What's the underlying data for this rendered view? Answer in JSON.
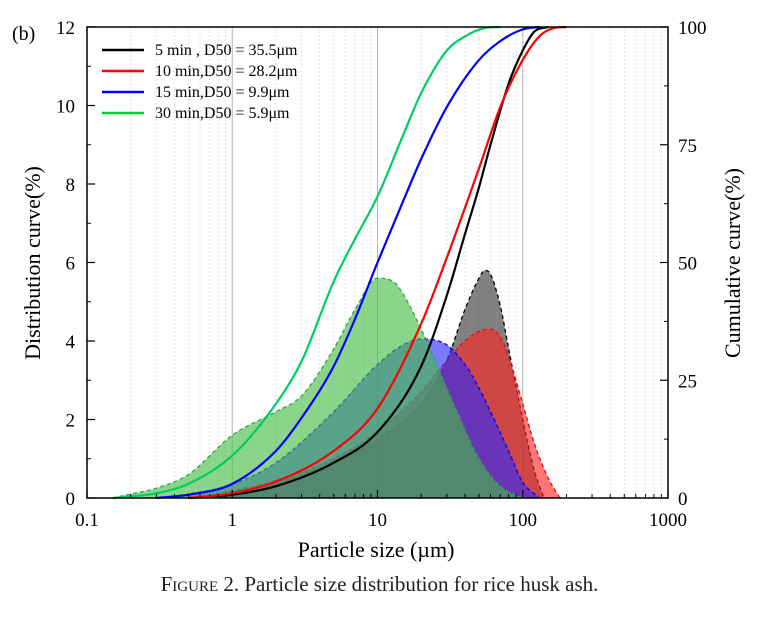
{
  "figure": {
    "panel_label": "(b)",
    "caption_prefix": "Figure",
    "caption_text": " 2. Particle size distribution for rice husk ash."
  },
  "chart_data": {
    "type": "area",
    "xlabel": "Particle size (µm)",
    "ylabel_left": "Distribution curve(%)",
    "ylabel_right": "Cumulative curve(%)",
    "x_scale": "log",
    "xlim": [
      0.1,
      1000
    ],
    "ylim_left": [
      0,
      12
    ],
    "ylim_right": [
      0,
      100
    ],
    "x_ticks": [
      "0.1",
      "1",
      "10",
      "100",
      "1000"
    ],
    "y_left_ticks": [
      "0",
      "2",
      "4",
      "6",
      "8",
      "10",
      "12"
    ],
    "y_right_ticks": [
      "0",
      "25",
      "50",
      "75",
      "100"
    ],
    "grid": "vertical minor gridlines (log)",
    "legend_position": "top-left",
    "series": [
      {
        "name": "5 min , D50 = 35.5μm",
        "color": "#000000",
        "fill_color": "#333333",
        "d50": 35.5,
        "distribution": {
          "x": [
            0.5,
            0.8,
            1,
            2,
            5,
            10,
            20,
            30,
            40,
            50,
            55,
            60,
            70,
            80,
            100,
            120,
            140
          ],
          "y": [
            0,
            0.08,
            0.15,
            0.4,
            0.9,
            1.5,
            2.4,
            3.5,
            4.8,
            5.6,
            5.8,
            5.7,
            4.9,
            3.8,
            2.0,
            0.7,
            0
          ]
        },
        "cumulative": {
          "x": [
            0.5,
            1,
            2,
            5,
            10,
            20,
            30,
            40,
            50,
            60,
            80,
            100,
            120,
            150
          ],
          "y": [
            0,
            0.7,
            2.5,
            7.5,
            14,
            28,
            43,
            56,
            66,
            75,
            88,
            95,
            99,
            100
          ]
        }
      },
      {
        "name": "10 min,D50 = 28.2μm",
        "color": "#ff0000",
        "fill_color": "#ff2222",
        "d50": 28.2,
        "distribution": {
          "x": [
            0.5,
            1,
            2,
            5,
            10,
            20,
            30,
            40,
            50,
            60,
            70,
            80,
            100,
            120,
            150,
            180
          ],
          "y": [
            0,
            0.18,
            0.45,
            1.0,
            1.7,
            2.7,
            3.5,
            4.0,
            4.25,
            4.3,
            4.1,
            3.6,
            2.4,
            1.4,
            0.5,
            0
          ]
        },
        "cumulative": {
          "x": [
            0.5,
            1,
            2,
            5,
            10,
            20,
            30,
            50,
            70,
            100,
            130,
            160,
            200
          ],
          "y": [
            0,
            1,
            3.5,
            10,
            19,
            37,
            51,
            70,
            83,
            93,
            98,
            99.7,
            100
          ]
        }
      },
      {
        "name": "15 min,D50 = 9.9μm",
        "color": "#0000ff",
        "fill_color": "#2a2aff",
        "d50": 9.9,
        "distribution": {
          "x": [
            0.3,
            0.5,
            1,
            2,
            5,
            10,
            15,
            20,
            30,
            40,
            50,
            60,
            80,
            100,
            130
          ],
          "y": [
            0,
            0.1,
            0.35,
            0.9,
            2.2,
            3.4,
            3.9,
            4.05,
            3.9,
            3.4,
            2.8,
            2.2,
            1.2,
            0.4,
            0
          ]
        },
        "cumulative": {
          "x": [
            0.3,
            0.5,
            1,
            2,
            3,
            5,
            7,
            10,
            15,
            20,
            30,
            50,
            70,
            100,
            130
          ],
          "y": [
            0,
            0.7,
            3,
            10,
            17,
            28,
            38,
            50,
            63,
            72,
            83,
            93,
            97,
            99.5,
            100
          ]
        }
      },
      {
        "name": "30 min,D50 = 5.9μm",
        "color": "#00cc66",
        "fill_color": "#44bb44",
        "d50": 5.9,
        "distribution": {
          "x": [
            0.15,
            0.2,
            0.3,
            0.5,
            1,
            2,
            3,
            5,
            7,
            10,
            13,
            15,
            20,
            30,
            50,
            70,
            100
          ],
          "y": [
            0,
            0.1,
            0.25,
            0.6,
            1.6,
            2.2,
            2.6,
            3.8,
            4.8,
            5.6,
            5.5,
            5.2,
            4.3,
            2.8,
            1.0,
            0.3,
            0
          ]
        },
        "cumulative": {
          "x": [
            0.15,
            0.3,
            0.5,
            1,
            2,
            3,
            5,
            7,
            10,
            15,
            20,
            30,
            40,
            55,
            70
          ],
          "y": [
            0,
            1,
            3,
            9,
            20,
            29,
            46,
            55,
            64,
            77,
            86,
            95,
            98,
            99.8,
            100
          ]
        }
      }
    ]
  }
}
